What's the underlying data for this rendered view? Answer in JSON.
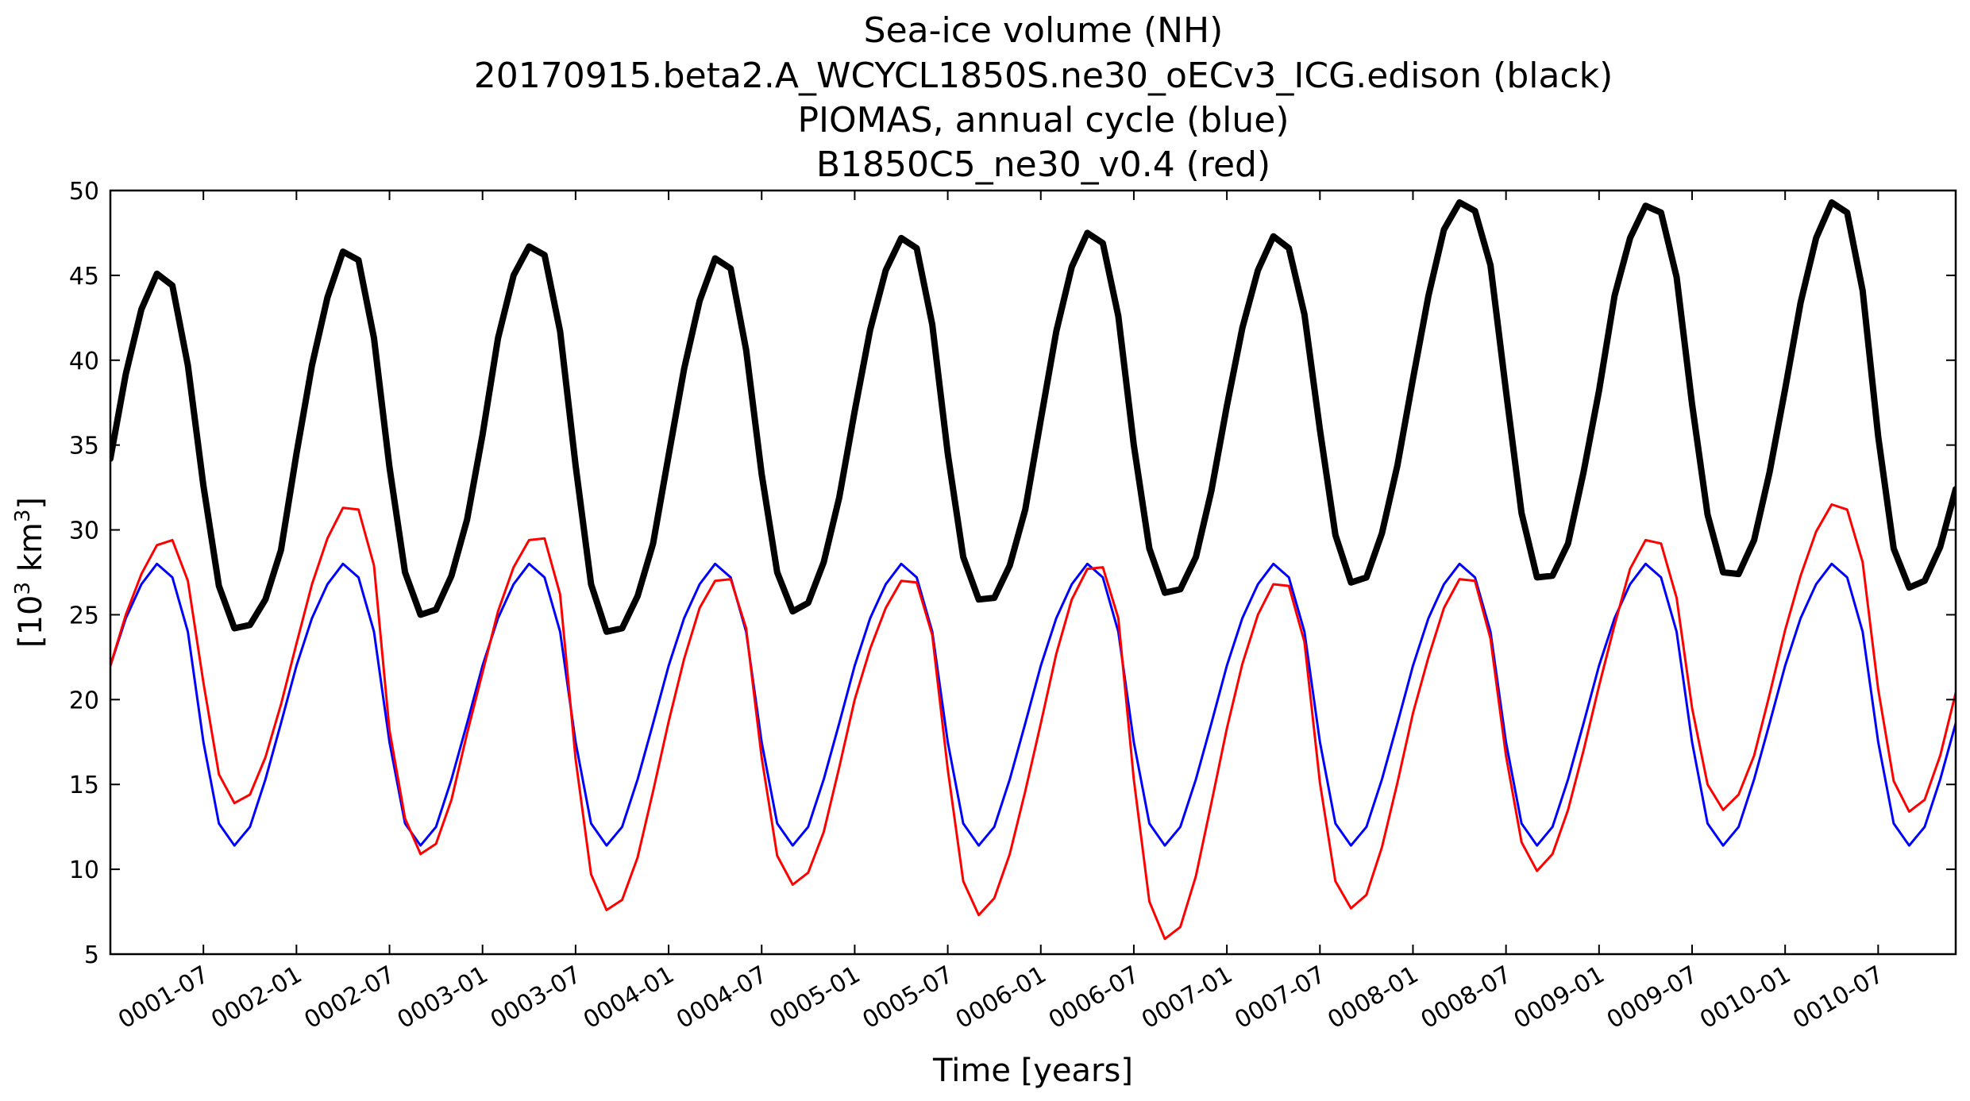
{
  "chart_data": {
    "type": "line",
    "title_lines": [
      "Sea-ice volume (NH)",
      "20170915.beta2.A_WCYCL1850S.ne30_oECv3_ICG.edison (black)",
      "PIOMAS, annual cycle (blue)",
      "B1850C5_ne30_v0.4 (red)"
    ],
    "xlabel": "Time [years]",
    "ylabel_parts": {
      "prefix": "[10",
      "sup1": "3",
      "middle": " km",
      "sup2": "3",
      "suffix": "]"
    },
    "x_unit": "months since start of year 0001",
    "xlim": [
      0,
      119
    ],
    "ylim": [
      5,
      50
    ],
    "y_ticks": [
      5,
      10,
      15,
      20,
      25,
      30,
      35,
      40,
      45,
      50
    ],
    "y_tick_labels": [
      "5",
      "10",
      "15",
      "20",
      "25",
      "30",
      "35",
      "40",
      "45",
      "50"
    ],
    "x_ticks": [
      6,
      12,
      18,
      24,
      30,
      36,
      42,
      48,
      54,
      60,
      66,
      72,
      78,
      84,
      90,
      96,
      102,
      108,
      114
    ],
    "x_tick_labels": [
      "0001-07",
      "0002-01",
      "0002-07",
      "0003-01",
      "0003-07",
      "0004-01",
      "0004-07",
      "0005-01",
      "0005-07",
      "0006-01",
      "0006-07",
      "0007-01",
      "0007-07",
      "0008-01",
      "0008-07",
      "0009-01",
      "0009-07",
      "0010-01",
      "0010-07"
    ],
    "grid": false,
    "legend": "none",
    "series": [
      {
        "color": "#0000ff",
        "line_width": 3,
        "values": [
          22.0,
          24.8,
          26.8,
          28.0,
          27.2,
          24.0,
          17.5,
          12.7,
          11.4,
          12.5,
          15.3,
          18.6,
          22.0,
          24.8,
          26.8,
          28.0,
          27.2,
          24.0,
          17.5,
          12.7,
          11.4,
          12.5,
          15.3,
          18.6,
          22.0,
          24.8,
          26.8,
          28.0,
          27.2,
          24.0,
          17.5,
          12.7,
          11.4,
          12.5,
          15.3,
          18.6,
          22.0,
          24.8,
          26.8,
          28.0,
          27.2,
          24.0,
          17.5,
          12.7,
          11.4,
          12.5,
          15.3,
          18.6,
          22.0,
          24.8,
          26.8,
          28.0,
          27.2,
          24.0,
          17.5,
          12.7,
          11.4,
          12.5,
          15.3,
          18.6,
          22.0,
          24.8,
          26.8,
          28.0,
          27.2,
          24.0,
          17.5,
          12.7,
          11.4,
          12.5,
          15.3,
          18.6,
          22.0,
          24.8,
          26.8,
          28.0,
          27.2,
          24.0,
          17.5,
          12.7,
          11.4,
          12.5,
          15.3,
          18.6,
          22.0,
          24.8,
          26.8,
          28.0,
          27.2,
          24.0,
          17.5,
          12.7,
          11.4,
          12.5,
          15.3,
          18.6,
          22.0,
          24.8,
          26.8,
          28.0,
          27.2,
          24.0,
          17.5,
          12.7,
          11.4,
          12.5,
          15.3,
          18.6,
          22.0,
          24.8,
          26.8,
          28.0,
          27.2,
          24.0,
          17.5,
          12.7,
          11.4,
          12.5,
          15.3,
          18.6
        ]
      },
      {
        "color": "#ff0000",
        "line_width": 3,
        "values": [
          22.0,
          25.0,
          27.4,
          29.1,
          29.4,
          27.0,
          21.0,
          15.6,
          13.9,
          14.4,
          16.6,
          19.7,
          23.3,
          26.8,
          29.5,
          31.3,
          31.2,
          27.9,
          18.2,
          13.0,
          10.9,
          11.5,
          14.1,
          18.0,
          21.6,
          25.2,
          27.8,
          29.4,
          29.5,
          26.2,
          16.5,
          9.7,
          7.6,
          8.2,
          10.7,
          14.6,
          18.7,
          22.4,
          25.4,
          27.0,
          27.1,
          24.2,
          16.6,
          10.8,
          9.1,
          9.8,
          12.2,
          16.0,
          20.0,
          23.0,
          25.4,
          27.0,
          26.9,
          23.8,
          15.9,
          9.3,
          7.3,
          8.3,
          10.9,
          14.6,
          18.6,
          22.7,
          25.9,
          27.7,
          27.8,
          24.8,
          15.3,
          8.1,
          5.9,
          6.6,
          9.6,
          13.9,
          18.3,
          22.1,
          25.0,
          26.8,
          26.7,
          23.4,
          15.1,
          9.3,
          7.7,
          8.5,
          11.3,
          15.1,
          19.2,
          22.5,
          25.4,
          27.1,
          27.0,
          23.6,
          16.7,
          11.6,
          9.9,
          10.9,
          13.5,
          17.0,
          20.8,
          24.4,
          27.7,
          29.4,
          29.2,
          26.0,
          19.5,
          15.0,
          13.5,
          14.4,
          16.7,
          20.3,
          24.1,
          27.3,
          29.9,
          31.5,
          31.2,
          28.1,
          20.6,
          15.2,
          13.4,
          14.1,
          16.7,
          20.4
        ]
      },
      {
        "color": "#000000",
        "line_width": 8,
        "values": [
          34.2,
          39.2,
          43.0,
          45.1,
          44.4,
          39.7,
          32.6,
          26.7,
          24.2,
          24.4,
          25.9,
          28.8,
          34.5,
          39.7,
          43.7,
          46.4,
          45.9,
          41.3,
          33.7,
          27.5,
          25.0,
          25.3,
          27.3,
          30.6,
          35.6,
          41.3,
          45.0,
          46.7,
          46.2,
          41.7,
          33.8,
          26.8,
          24.0,
          24.2,
          26.1,
          29.2,
          34.4,
          39.5,
          43.5,
          46.0,
          45.4,
          40.6,
          33.3,
          27.5,
          25.2,
          25.7,
          28.1,
          31.9,
          37.0,
          41.8,
          45.3,
          47.2,
          46.6,
          42.1,
          34.5,
          28.4,
          25.9,
          26.0,
          27.9,
          31.2,
          36.5,
          41.7,
          45.5,
          47.5,
          46.9,
          42.6,
          35.0,
          28.9,
          26.3,
          26.5,
          28.4,
          32.3,
          37.3,
          41.9,
          45.3,
          47.3,
          46.6,
          42.7,
          35.9,
          29.7,
          26.9,
          27.2,
          29.8,
          33.8,
          38.9,
          43.8,
          47.7,
          49.3,
          48.8,
          45.6,
          38.2,
          31.0,
          27.2,
          27.3,
          29.2,
          33.4,
          38.2,
          43.8,
          47.2,
          49.1,
          48.7,
          44.9,
          37.4,
          30.9,
          27.5,
          27.4,
          29.4,
          33.4,
          38.3,
          43.4,
          47.2,
          49.3,
          48.7,
          44.1,
          35.5,
          28.9,
          26.6,
          27.0,
          29.0,
          32.4
        ]
      }
    ]
  }
}
